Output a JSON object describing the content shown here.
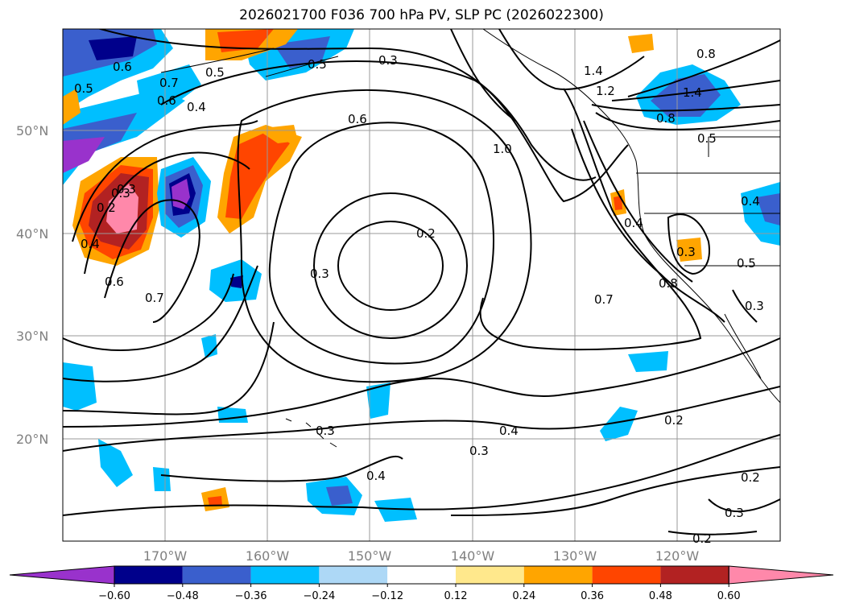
{
  "title": "2026021700 F036 700 hPa PV, SLP PC (2026022300)",
  "map": {
    "lat_labels": [
      "50°N",
      "40°N",
      "30°N",
      "20°N"
    ],
    "lon_labels": [
      "170°W",
      "160°W",
      "150°W",
      "140°W",
      "130°W",
      "120°W"
    ],
    "contour_labels": [
      "0.5",
      "0.6",
      "0.7",
      "0.6",
      "0.4",
      "0.5",
      "0.3",
      "0.5",
      "0.6",
      "0.3",
      "1.4",
      "1.2",
      "1.0",
      "0.8",
      "0.5",
      "1.4",
      "0.8",
      "0.3",
      "0.2",
      "0.4",
      "0.6",
      "0.7",
      "0.3",
      "0.2",
      "0.4",
      "0.7",
      "0.8",
      "0.4",
      "0.5",
      "0.3",
      "0.3",
      "0.3",
      "0.4",
      "0.4",
      "0.3",
      "0.2",
      "0.2",
      "0.3",
      "0.2"
    ],
    "colors": {
      "land_outline": "#000000",
      "grid": "#999999"
    }
  },
  "colorbar": {
    "ticks": [
      "−0.60",
      "−0.48",
      "−0.36",
      "−0.24",
      "−0.12",
      "0.12",
      "0.24",
      "0.36",
      "0.48",
      "0.60"
    ],
    "colors": [
      "#9932cc",
      "#00008b",
      "#3a5fcd",
      "#00bfff",
      "#add8f6",
      "#ffffff",
      "#ffe88c",
      "#ffa500",
      "#ff4500",
      "#b22222",
      "#ff88aa"
    ]
  }
}
